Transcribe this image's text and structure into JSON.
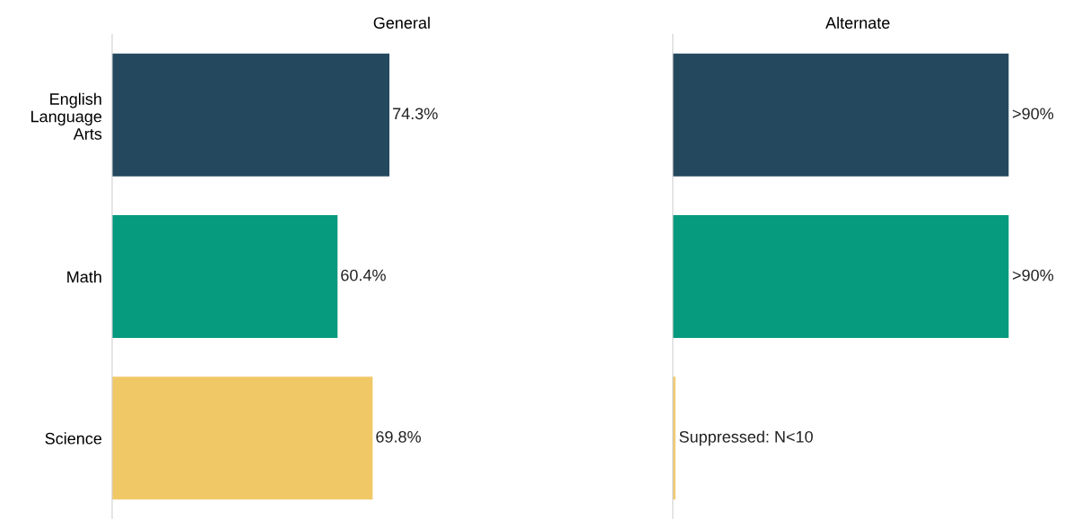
{
  "chart_data": [
    {
      "type": "bar",
      "title": "General",
      "orientation": "horizontal",
      "categories": [
        "English\nLanguage\nArts",
        "Math",
        "Science"
      ],
      "values": [
        74.3,
        60.4,
        69.8
      ],
      "colors": [
        "#24495e",
        "#069a7e",
        "#f0c866"
      ],
      "value_labels": [
        "74.3%",
        "60.4%",
        "69.8%"
      ],
      "grid": false,
      "legend": false
    },
    {
      "type": "bar",
      "title": "Alternate",
      "orientation": "horizontal",
      "categories": [
        null,
        null,
        null
      ],
      "values": [
        90,
        90,
        0.7
      ],
      "colors": [
        "#24495e",
        "#069a7e",
        "#f0c866"
      ],
      "value_labels": [
        ">90%",
        ">90%",
        "Suppressed: N<10"
      ],
      "grid": false,
      "legend": false
    }
  ]
}
